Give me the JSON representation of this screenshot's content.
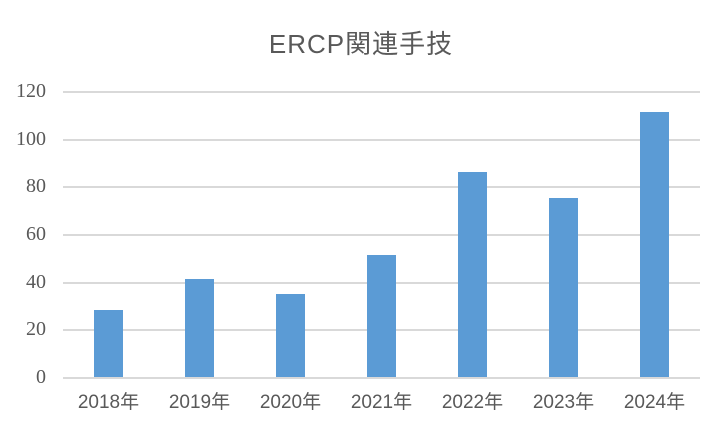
{
  "chart_data": {
    "type": "bar",
    "title": "ERCP関連手技",
    "categories": [
      "2018年",
      "2019年",
      "2020年",
      "2021年",
      "2022年",
      "2023年",
      "2024年"
    ],
    "values": [
      28,
      41,
      35,
      51,
      86,
      75,
      111
    ],
    "yticks": [
      0,
      20,
      40,
      60,
      80,
      100,
      120
    ],
    "ylim": [
      0,
      120
    ],
    "xlabel": "",
    "ylabel": "",
    "grid": true,
    "legend": false,
    "bar_color": "#5B9BD5",
    "gridline_color": "#D9D9D9",
    "text_color": "#595959",
    "background_color": "#FFFFFF"
  }
}
